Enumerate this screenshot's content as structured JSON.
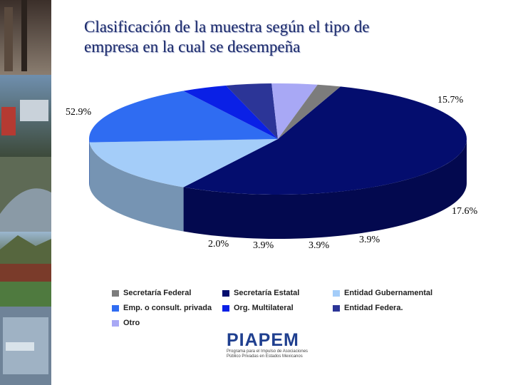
{
  "title_lines": [
    "Clasificación de la muestra según el tipo de",
    "empresa en la cual se desempeña"
  ],
  "chart_data": {
    "type": "pie",
    "title": "Clasificación de la muestra según el tipo de empresa en la cual se desempeña",
    "legend_position": "bottom",
    "slices": [
      {
        "label": "Secretaría Estatal",
        "value": 52.9,
        "value_label": "52.9%",
        "color": "#040d6e"
      },
      {
        "label": "Entidad Gubernamental",
        "value": 15.7,
        "value_label": "15.7%",
        "color": "#a4cdf9"
      },
      {
        "label": "Emp. o consult. privada",
        "value": 17.6,
        "value_label": "17.6%",
        "color": "#2f6cf2"
      },
      {
        "label": "Org. Multilateral",
        "value": 3.9,
        "value_label": "3.9%",
        "color": "#0a20e6"
      },
      {
        "label": "Entidad Federa.",
        "value": 3.9,
        "value_label": "3.9%",
        "color": "#2c3597"
      },
      {
        "label": "Otro",
        "value": 3.9,
        "value_label": "3.9%",
        "color": "#a8a8f5"
      },
      {
        "label": "Secretaría Federal",
        "value": 2.0,
        "value_label": "2.0%",
        "color": "#7c7c7c"
      }
    ]
  },
  "legend": [
    {
      "label": "Secretaría Federal",
      "color": "#7c7c7c"
    },
    {
      "label": "Secretaría Estatal",
      "color": "#040d6e"
    },
    {
      "label": "Entidad Gubernamental",
      "color": "#a4cdf9"
    },
    {
      "label": "Emp. o consult. privada",
      "color": "#2f6cf2"
    },
    {
      "label": "Org. Multilateral",
      "color": "#0a20e6"
    },
    {
      "label": "Entidad Federa.",
      "color": "#2c3597"
    },
    {
      "label": "Otro",
      "color": "#a8a8f5"
    }
  ],
  "logo": {
    "word": "PIAPEM",
    "line1": "Programa para el Impulso de Asociaciones",
    "line2": "Público Privadas en Estados Mexicanos"
  }
}
